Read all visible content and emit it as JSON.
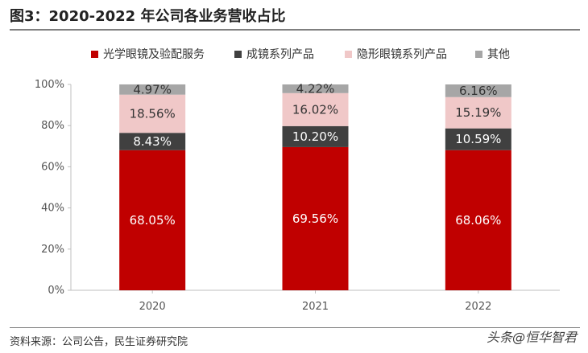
{
  "page": {
    "title": "图3：2020-2022 年公司各业务营收占比",
    "source": "资料来源：公司公告，民生证券研究院",
    "watermark": "头条@恒华智君"
  },
  "chart_data": {
    "type": "bar",
    "stacked": true,
    "title": "图3：2020-2022 年公司各业务营收占比",
    "categories": [
      "2020",
      "2021",
      "2022"
    ],
    "series": [
      {
        "name": "光学眼镜及验配服务",
        "color": "#c00000",
        "label_color": "#ffffff",
        "values": [
          68.05,
          69.56,
          68.06
        ],
        "labels": [
          "68.05%",
          "69.56%",
          "68.06%"
        ]
      },
      {
        "name": "成镜系列产品",
        "color": "#404040",
        "label_color": "#ffffff",
        "values": [
          8.43,
          10.2,
          10.59
        ],
        "labels": [
          "8.43%",
          "10.20%",
          "10.59%"
        ]
      },
      {
        "name": "隐形眼镜系列产品",
        "color": "#f0c8c8",
        "label_color": "#333333",
        "values": [
          18.56,
          16.02,
          15.19
        ],
        "labels": [
          "18.56%",
          "16.02%",
          "15.19%"
        ]
      },
      {
        "name": "其他",
        "color": "#a6a6a6",
        "label_color": "#333333",
        "values": [
          4.97,
          4.22,
          6.16
        ],
        "labels": [
          "4.97%",
          "4.22%",
          "6.16%"
        ]
      }
    ],
    "ylim": [
      0,
      100
    ],
    "yticks": [
      "0%",
      "20%",
      "40%",
      "60%",
      "80%",
      "100%"
    ],
    "legend_position": "top",
    "grid": false
  }
}
